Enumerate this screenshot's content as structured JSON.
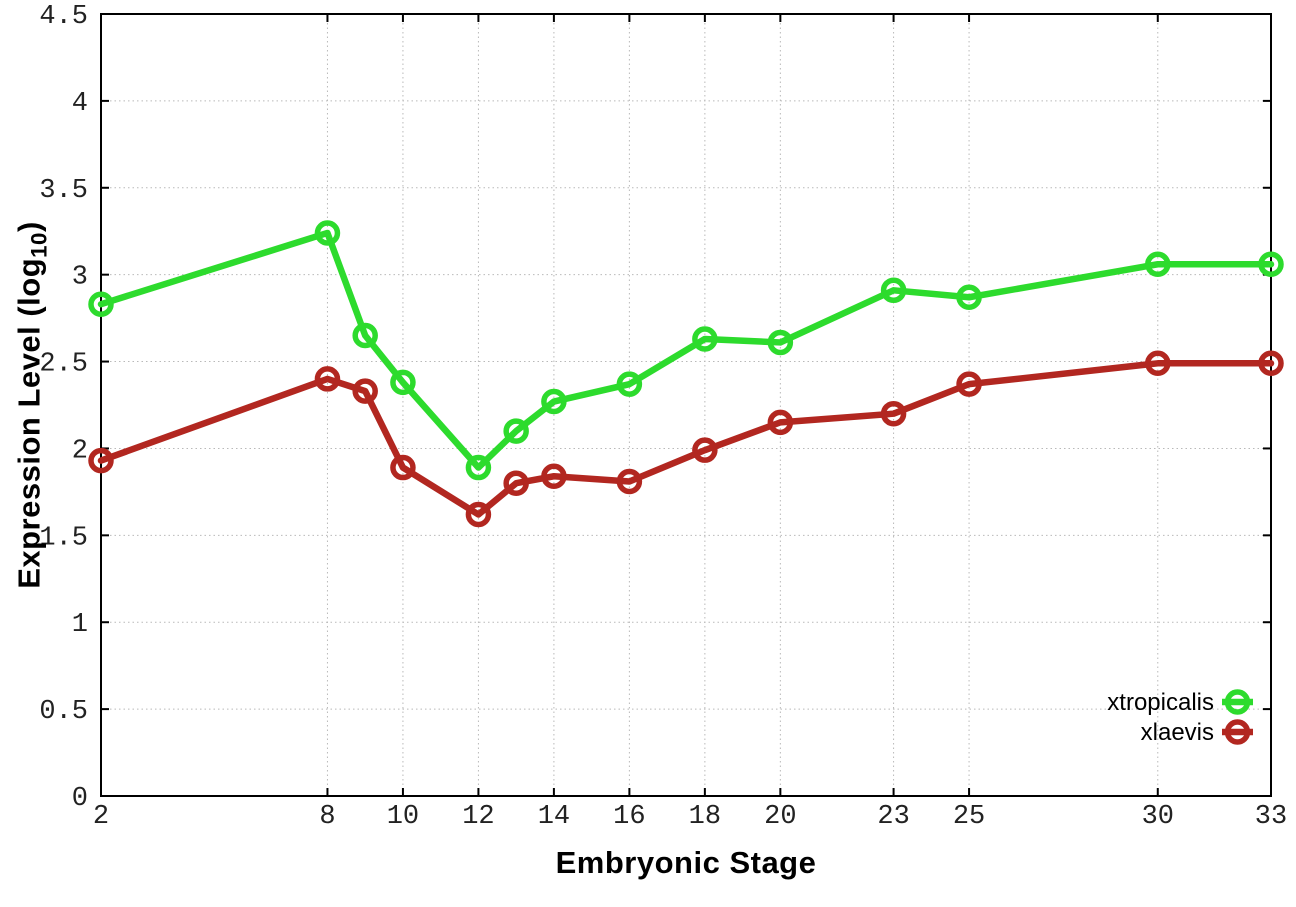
{
  "chart_data": {
    "type": "line",
    "title": "",
    "xlabel": "Embryonic Stage",
    "ylabel": "Expression Level (log10)",
    "ylabel_main": "Expression Level (log",
    "ylabel_sub": "10",
    "ylabel_suffix": ")",
    "x": [
      2,
      8,
      9,
      10,
      12,
      13,
      14,
      16,
      18,
      20,
      23,
      25,
      30,
      33
    ],
    "series": [
      {
        "name": "xtropicalis",
        "color": "#2ddb2d",
        "values": [
          2.83,
          3.24,
          2.65,
          2.38,
          1.89,
          2.1,
          2.27,
          2.37,
          2.63,
          2.61,
          2.91,
          2.87,
          3.06,
          3.06
        ]
      },
      {
        "name": "xlaevis",
        "color": "#b22720",
        "values": [
          1.93,
          2.4,
          2.33,
          1.89,
          1.62,
          1.8,
          1.84,
          1.81,
          1.99,
          2.15,
          2.2,
          2.37,
          2.49,
          2.49
        ]
      }
    ],
    "x_ticks": [
      2,
      8,
      10,
      12,
      14,
      16,
      18,
      20,
      23,
      25,
      30,
      33
    ],
    "x_tick_labels": [
      "2",
      "8",
      "10",
      "12",
      "14",
      "16",
      "18",
      "20",
      "23",
      "25",
      "30",
      "33"
    ],
    "y_ticks": [
      0,
      0.5,
      1,
      1.5,
      2,
      2.5,
      3,
      3.5,
      4,
      4.5
    ],
    "y_tick_labels": [
      "0",
      "0.5",
      "1",
      "1.5",
      "2",
      "2.5",
      "3",
      "3.5",
      "4",
      "4.5"
    ],
    "xlim": [
      2,
      33
    ],
    "ylim": [
      0,
      4.5
    ],
    "grid": true,
    "grid_style": "dotted",
    "legend_position": "bottom-right-inside",
    "legend": [
      "xtropicalis",
      "xlaevis"
    ],
    "colors": {
      "background": "#ffffff",
      "border": "#000000",
      "grid": "#b9b9b9",
      "tick_text": "#222222",
      "series_green": "#2ddb2d",
      "series_red": "#b22720"
    }
  }
}
